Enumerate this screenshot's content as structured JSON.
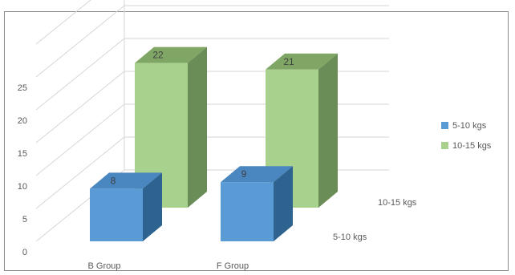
{
  "chart_data": {
    "type": "bar",
    "title": "",
    "xlabel": "",
    "ylabel": "",
    "categories": [
      "B Group",
      "F Group"
    ],
    "series": [
      {
        "name": "5-10 kgs",
        "values": [
          8,
          9
        ],
        "color": "#5B9BD5",
        "side_color": "#2E6390",
        "top_color": "#4A87C0"
      },
      {
        "name": "10-15 kgs",
        "values": [
          22,
          21
        ],
        "color": "#A9D18E",
        "side_color": "#6A8C57",
        "top_color": "#7FA665"
      }
    ],
    "y_ticks": [
      0,
      5,
      10,
      15,
      20,
      25
    ],
    "ylim": [
      0,
      30
    ],
    "depth_labels": [
      "5-10 kgs",
      "10-15 kgs"
    ],
    "grid": true,
    "legend_position": "right"
  }
}
